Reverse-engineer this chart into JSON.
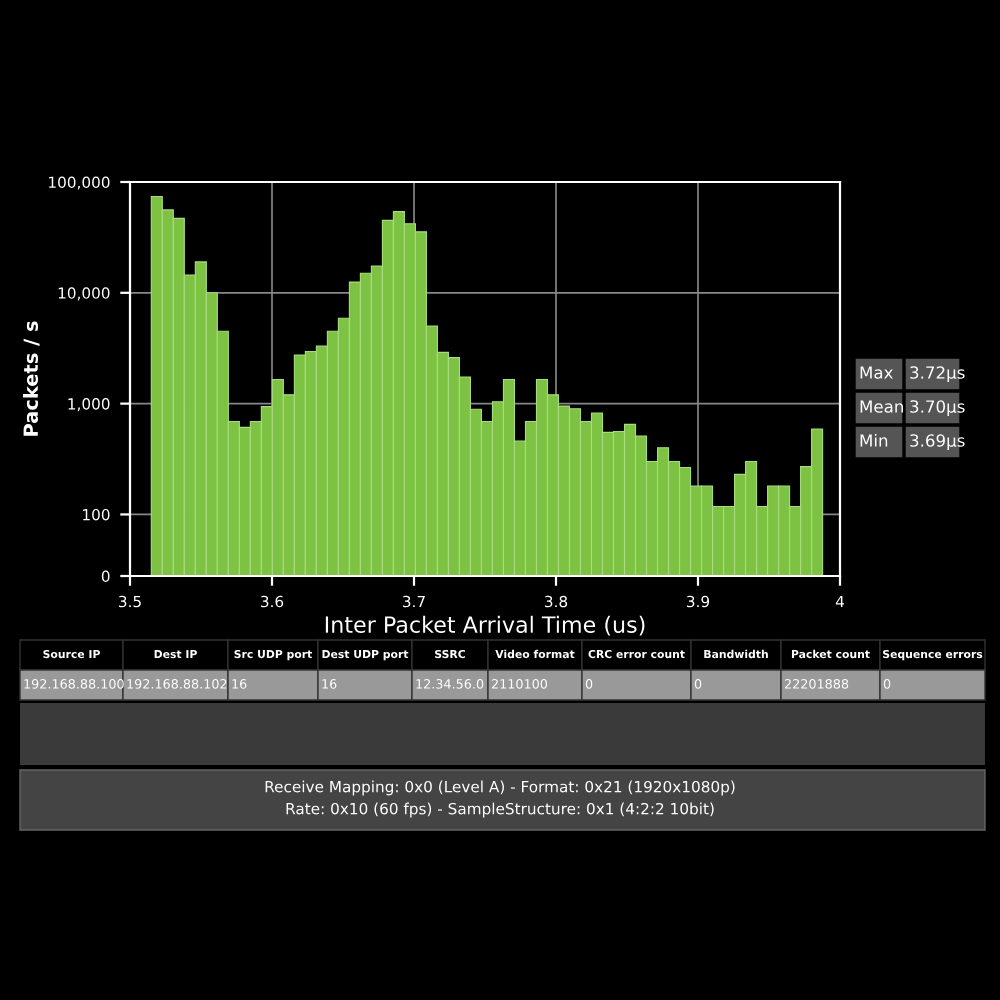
{
  "chart_data": {
    "type": "histogram",
    "xlabel": "Inter Packet Arrival Time (us)",
    "ylabel": "Packets / s",
    "bins": [
      3.515,
      3.52275,
      3.5305,
      3.53825,
      3.546,
      3.55375,
      3.5615,
      3.56925,
      3.577,
      3.58475,
      3.5925,
      3.60025,
      3.608,
      3.61575,
      3.6235,
      3.63125,
      3.639,
      3.64675,
      3.6545,
      3.66225,
      3.67,
      3.67775,
      3.6855,
      3.69325,
      3.701,
      3.70875,
      3.7165,
      3.72425,
      3.732,
      3.73975,
      3.7475,
      3.75525,
      3.763,
      3.77075,
      3.7785,
      3.78625,
      3.794,
      3.80175,
      3.8095,
      3.81725,
      3.825,
      3.83275,
      3.8405,
      3.84825,
      3.856,
      3.86375,
      3.8715,
      3.87925,
      3.887,
      3.89475,
      3.9025,
      3.91025,
      3.918,
      3.92575,
      3.9335,
      3.94125,
      3.949,
      3.95675,
      3.9645,
      3.97225,
      3.98,
      3.98775
    ],
    "values": [
      74000,
      56000,
      47000,
      14500,
      19000,
      10000,
      4500,
      690,
      610,
      690,
      940,
      1650,
      1200,
      2750,
      2950,
      3300,
      4500,
      5900,
      12500,
      15000,
      17400,
      45000,
      54000,
      42000,
      35500,
      5000,
      2900,
      2600,
      1740,
      890,
      690,
      1040,
      1650,
      460,
      690,
      1650,
      1200,
      950,
      900,
      690,
      820,
      550,
      560,
      650,
      510,
      300,
      400,
      300,
      265,
      180,
      180,
      118,
      118,
      230,
      300,
      118,
      180,
      180,
      118,
      270,
      590
    ],
    "color": "#7dc242",
    "log": "y",
    "xlim": [
      3.5,
      4
    ],
    "xticks": [
      3.5,
      3.6,
      3.7,
      3.8,
      3.9,
      4
    ],
    "ylim": [
      0,
      100000
    ],
    "yticks": [
      0,
      100,
      {
        "value": 1000,
        "label": "1,000"
      },
      {
        "value": 10000,
        "label": "10,000"
      },
      {
        "value": 100000,
        "label": "100,000"
      }
    ],
    "grid": true,
    "annotations": [
      "Max",
      "3.72μs",
      "Mean",
      "3.70μs",
      "Min",
      "3.69μs",
      "Source IP",
      "Dest IP",
      "Src UDP port",
      "Dest UDP port",
      "SSRC",
      "Video format",
      "CRC error count",
      "Bandwidth",
      "Packet count",
      "Sequence errors",
      "192.168.88.100",
      "192.168.88.102",
      "16",
      "16",
      "12.34.56.0",
      "2110100",
      "0",
      "0",
      "22201888",
      "0",
      "Receive Mapping: 0x0 (Level A) - Format: 0x21 (1920x1080p)",
      "Rate: 0x10 (60 fps) - SampleStructure: 0x1 (4:2:2 10bit)"
    ]
  }
}
